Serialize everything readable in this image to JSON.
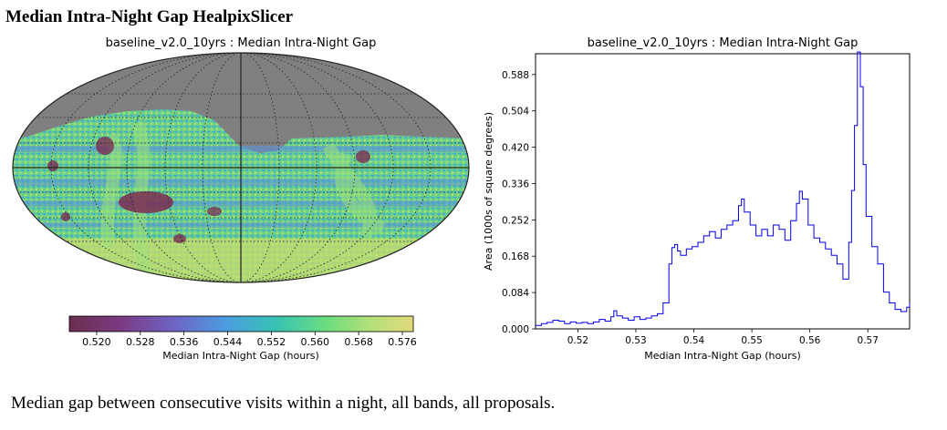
{
  "page": {
    "title": "Median Intra-Night Gap HealpixSlicer",
    "caption": "Median gap between consecutive visits within a night, all bands, all proposals."
  },
  "chart_data": [
    {
      "type": "heatmap",
      "projection": "mollweide",
      "title": "baseline_v2.0_10yrs : Median Intra-Night Gap",
      "colorbar": {
        "label": "Median Intra-Night Gap (hours)",
        "range": [
          0.515,
          0.578
        ],
        "ticks": [
          0.52,
          0.528,
          0.536,
          0.544,
          0.552,
          0.56,
          0.568,
          0.576
        ],
        "tick_labels": [
          "0.520",
          "0.528",
          "0.536",
          "0.544",
          "0.552",
          "0.560",
          "0.568",
          "0.576"
        ],
        "colormap": "viridis-like"
      },
      "grid": true
    },
    {
      "type": "line",
      "title": "baseline_v2.0_10yrs : Median Intra-Night Gap",
      "xlabel": "Median Intra-Night Gap (hours)",
      "ylabel": "Area (1000s of square degrees)",
      "xlim": [
        0.5127,
        0.5772
      ],
      "ylim": [
        0.0,
        0.636
      ],
      "xticks": [
        0.52,
        0.53,
        0.54,
        0.55,
        0.56,
        0.57
      ],
      "xtick_labels": [
        "0.52",
        "0.53",
        "0.54",
        "0.55",
        "0.56",
        "0.57"
      ],
      "yticks": [
        0.0,
        0.084,
        0.168,
        0.252,
        0.336,
        0.42,
        0.504,
        0.588
      ],
      "ytick_labels": [
        "0.000",
        "0.084",
        "0.168",
        "0.252",
        "0.336",
        "0.420",
        "0.504",
        "0.588"
      ],
      "series": [
        {
          "name": "histogram",
          "color": "#0000ee",
          "step": true,
          "x": [
            0.5127,
            0.5137,
            0.5147,
            0.5157,
            0.5167,
            0.5177,
            0.5187,
            0.5197,
            0.5207,
            0.5217,
            0.5227,
            0.5237,
            0.5247,
            0.5257,
            0.5262,
            0.5267,
            0.5277,
            0.5287,
            0.5297,
            0.5307,
            0.5317,
            0.5327,
            0.5337,
            0.5347,
            0.5357,
            0.5362,
            0.5367,
            0.5372,
            0.5377,
            0.5387,
            0.5397,
            0.5407,
            0.5417,
            0.5427,
            0.5437,
            0.5447,
            0.5457,
            0.5467,
            0.5477,
            0.5482,
            0.5487,
            0.5497,
            0.5507,
            0.5517,
            0.5527,
            0.5537,
            0.5547,
            0.5557,
            0.5567,
            0.5577,
            0.5582,
            0.5587,
            0.5597,
            0.5607,
            0.5617,
            0.5627,
            0.5637,
            0.5647,
            0.5657,
            0.5667,
            0.5672,
            0.5677,
            0.5682,
            0.5687,
            0.5692,
            0.5697,
            0.5707,
            0.5717,
            0.5727,
            0.5737,
            0.5747,
            0.5757,
            0.5767,
            0.5772
          ],
          "values": [
            0.008,
            0.012,
            0.015,
            0.02,
            0.018,
            0.012,
            0.016,
            0.013,
            0.015,
            0.012,
            0.016,
            0.022,
            0.018,
            0.028,
            0.042,
            0.03,
            0.025,
            0.02,
            0.028,
            0.022,
            0.025,
            0.03,
            0.035,
            0.06,
            0.15,
            0.188,
            0.195,
            0.18,
            0.17,
            0.185,
            0.19,
            0.2,
            0.215,
            0.225,
            0.21,
            0.23,
            0.24,
            0.25,
            0.285,
            0.3,
            0.27,
            0.24,
            0.215,
            0.23,
            0.215,
            0.24,
            0.23,
            0.205,
            0.25,
            0.29,
            0.318,
            0.3,
            0.24,
            0.21,
            0.2,
            0.185,
            0.17,
            0.15,
            0.115,
            0.2,
            0.32,
            0.47,
            0.64,
            0.56,
            0.38,
            0.26,
            0.19,
            0.15,
            0.085,
            0.06,
            0.045,
            0.04,
            0.05,
            0.06
          ]
        }
      ]
    }
  ]
}
